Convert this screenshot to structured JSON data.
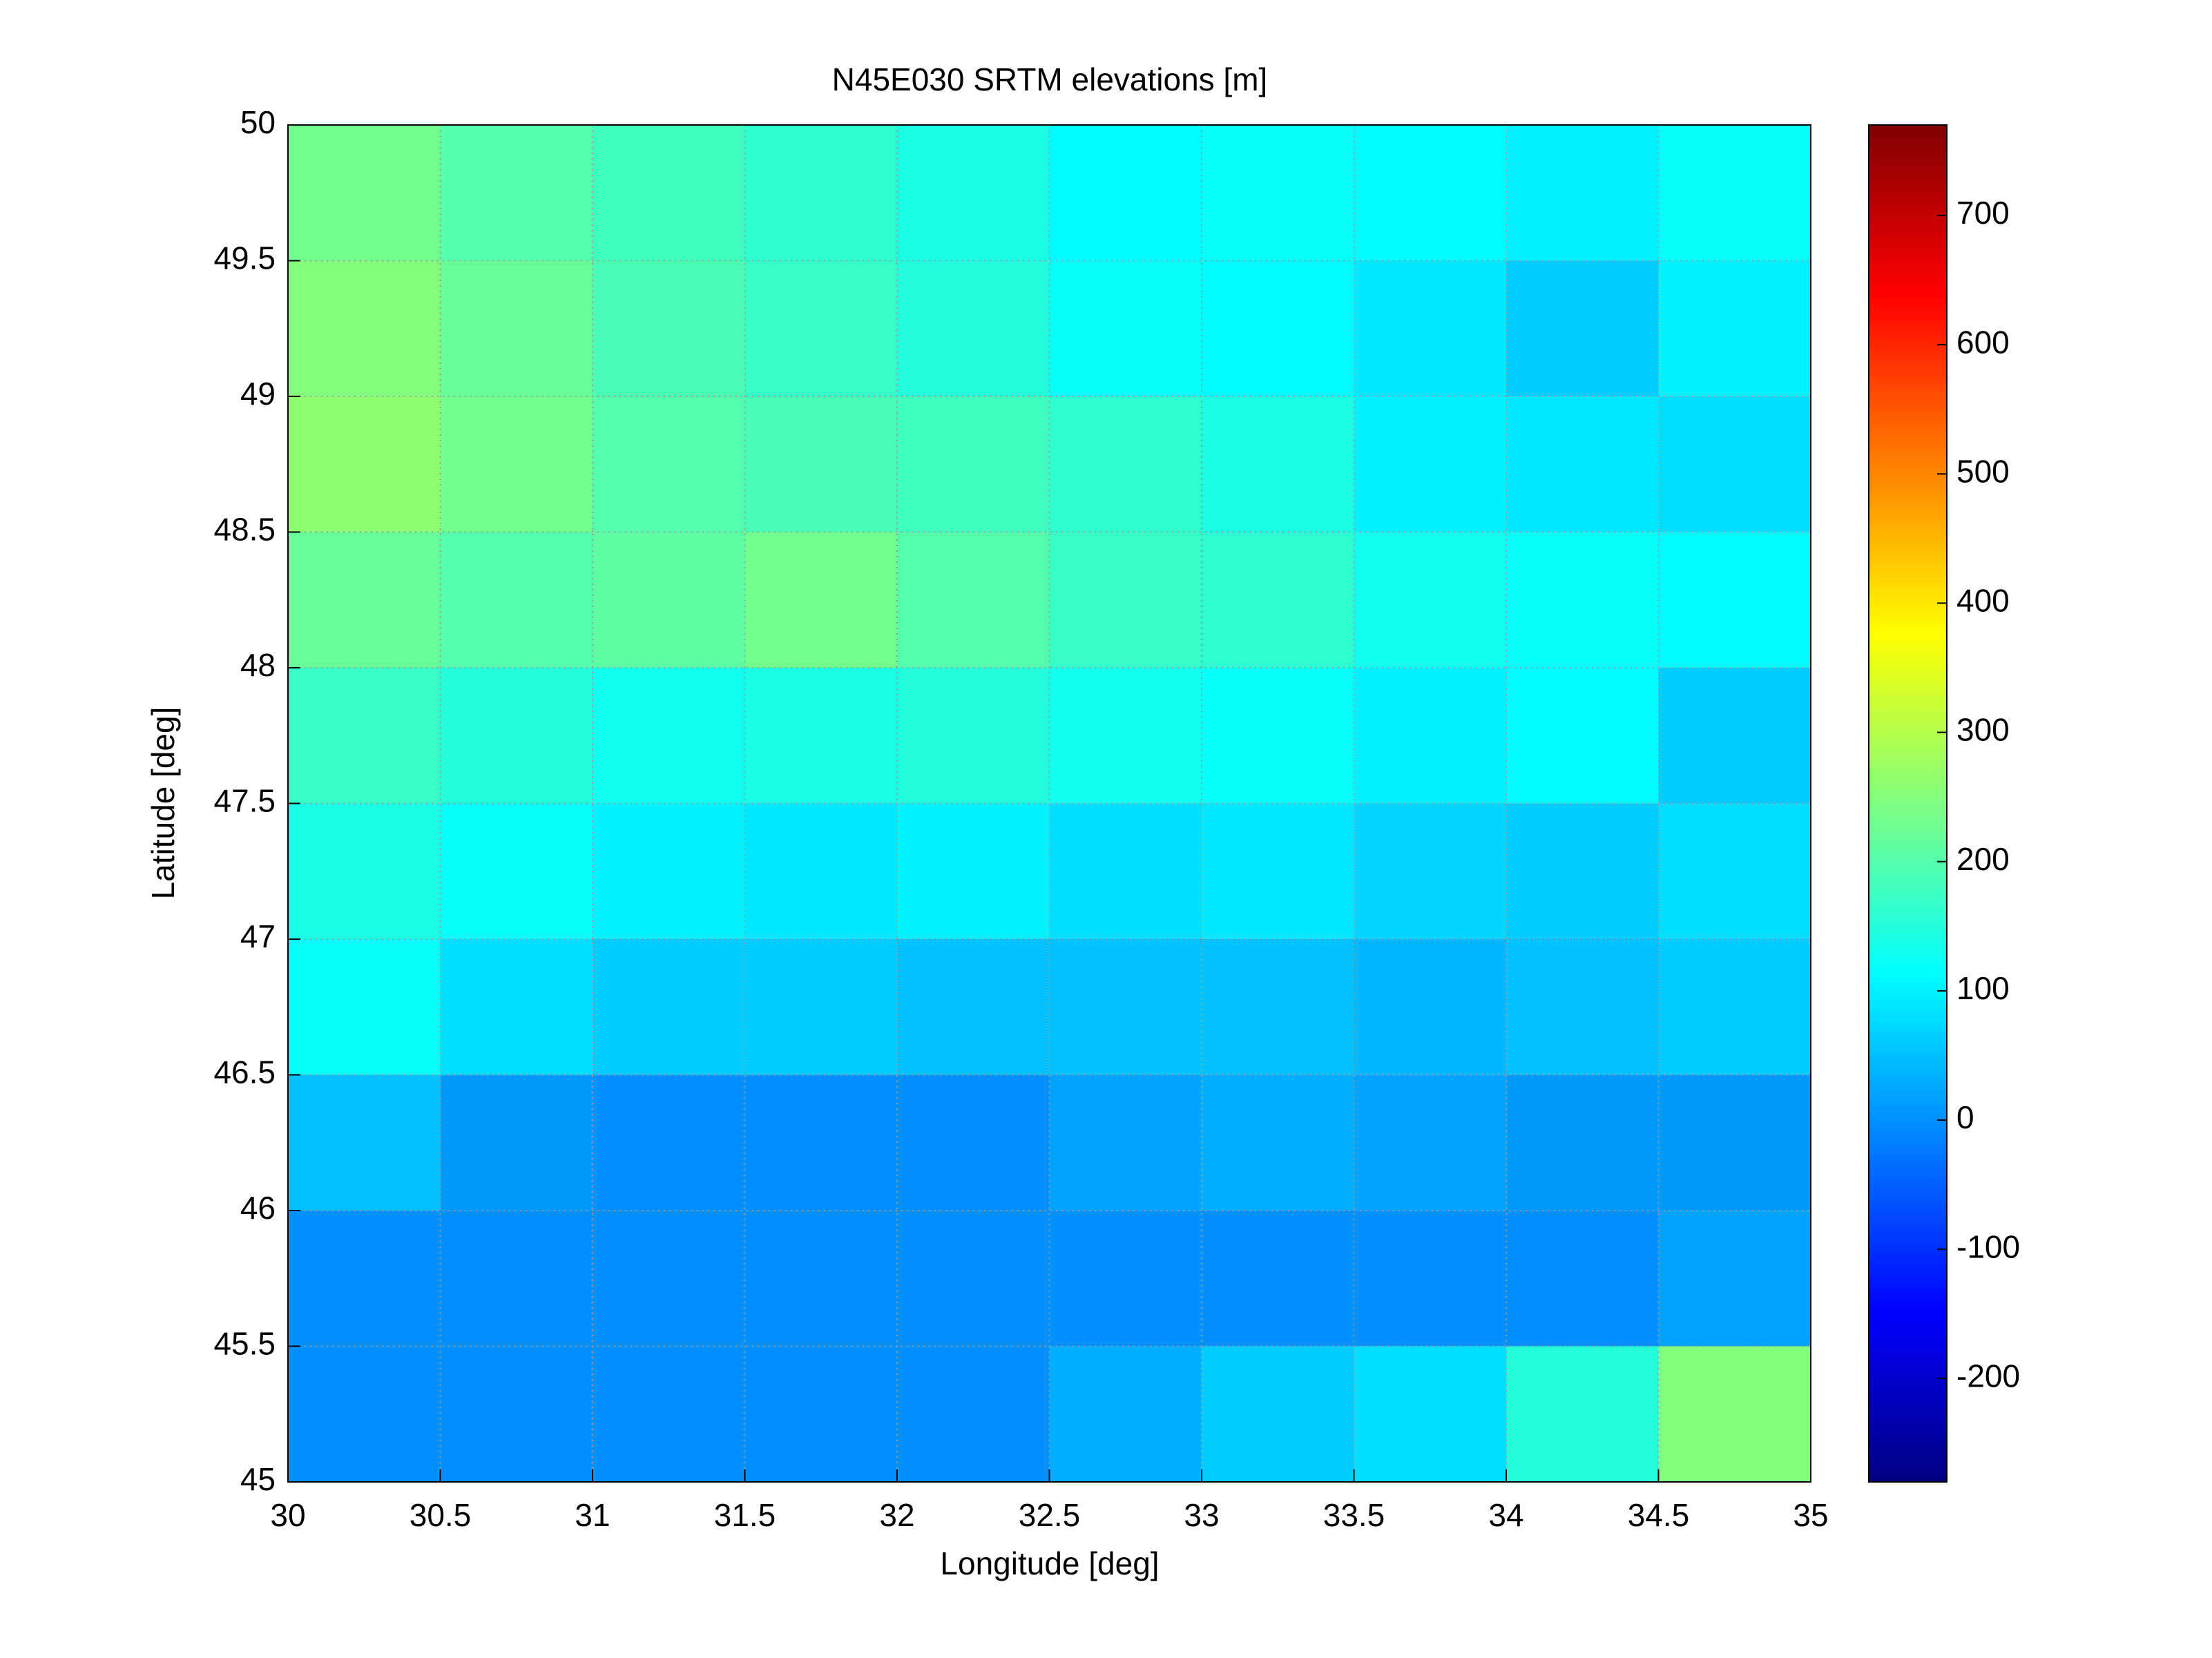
{
  "chart_data": {
    "type": "heatmap",
    "title": "N45E030 SRTM elevations [m]",
    "xlabel": "Longitude [deg]",
    "ylabel": "Latitude [deg]",
    "x": [
      30.25,
      30.75,
      31.25,
      31.75,
      32.25,
      32.75,
      33.25,
      33.75,
      34.25,
      34.75
    ],
    "y": [
      49.75,
      49.25,
      48.75,
      48.25,
      47.75,
      47.25,
      46.75,
      46.25,
      45.75,
      45.25
    ],
    "values": [
      [
        230,
        200,
        180,
        160,
        140,
        110,
        120,
        110,
        100,
        120
      ],
      [
        250,
        220,
        190,
        170,
        150,
        120,
        110,
        90,
        60,
        100
      ],
      [
        260,
        230,
        200,
        190,
        180,
        160,
        140,
        100,
        90,
        80
      ],
      [
        220,
        200,
        210,
        230,
        200,
        170,
        160,
        130,
        120,
        110
      ],
      [
        170,
        150,
        130,
        140,
        150,
        130,
        120,
        100,
        110,
        60
      ],
      [
        140,
        120,
        100,
        90,
        100,
        80,
        90,
        70,
        60,
        80
      ],
      [
        120,
        80,
        60,
        60,
        50,
        50,
        50,
        40,
        50,
        60
      ],
      [
        50,
        10,
        0,
        0,
        0,
        20,
        30,
        20,
        10,
        10
      ],
      [
        0,
        0,
        0,
        0,
        0,
        0,
        0,
        0,
        0,
        20
      ],
      [
        0,
        0,
        0,
        0,
        0,
        30,
        60,
        80,
        150,
        250
      ]
    ],
    "xlim": [
      30,
      35
    ],
    "ylim": [
      45,
      50
    ],
    "xticks": [
      30,
      30.5,
      31,
      31.5,
      32,
      32.5,
      33,
      33.5,
      34,
      34.5,
      35
    ],
    "yticks": [
      45,
      45.5,
      46,
      46.5,
      47,
      47.5,
      48,
      48.5,
      49,
      49.5,
      50
    ],
    "clim": [
      -280,
      770
    ],
    "colorbar_ticks": [
      -200,
      -100,
      0,
      100,
      200,
      300,
      400,
      500,
      600,
      700
    ],
    "colormap": "jet",
    "grid": true
  }
}
